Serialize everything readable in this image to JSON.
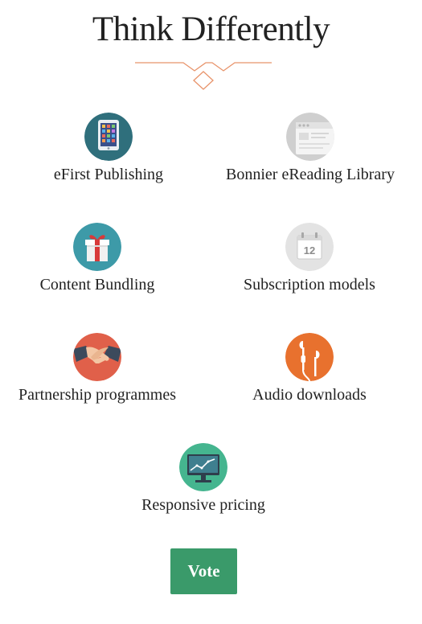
{
  "header": {
    "title": "Think Differently"
  },
  "colors": {
    "divider": "#e8936a",
    "vote_button": "#3a9a6a"
  },
  "options": [
    {
      "label": "eFirst Publishing",
      "icon": "tablet-icon"
    },
    {
      "label": "Bonnier eReading Library",
      "icon": "browser-window-icon"
    },
    {
      "label": "Content Bundling",
      "icon": "gift-icon"
    },
    {
      "label": "Subscription models",
      "icon": "calendar-icon",
      "icon_text": "12"
    },
    {
      "label": "Partnership programmes",
      "icon": "handshake-icon"
    },
    {
      "label": "Audio downloads",
      "icon": "earphones-icon"
    },
    {
      "label": "Responsive pricing",
      "icon": "monitor-chart-icon"
    }
  ],
  "vote_button": {
    "label": "Vote"
  }
}
